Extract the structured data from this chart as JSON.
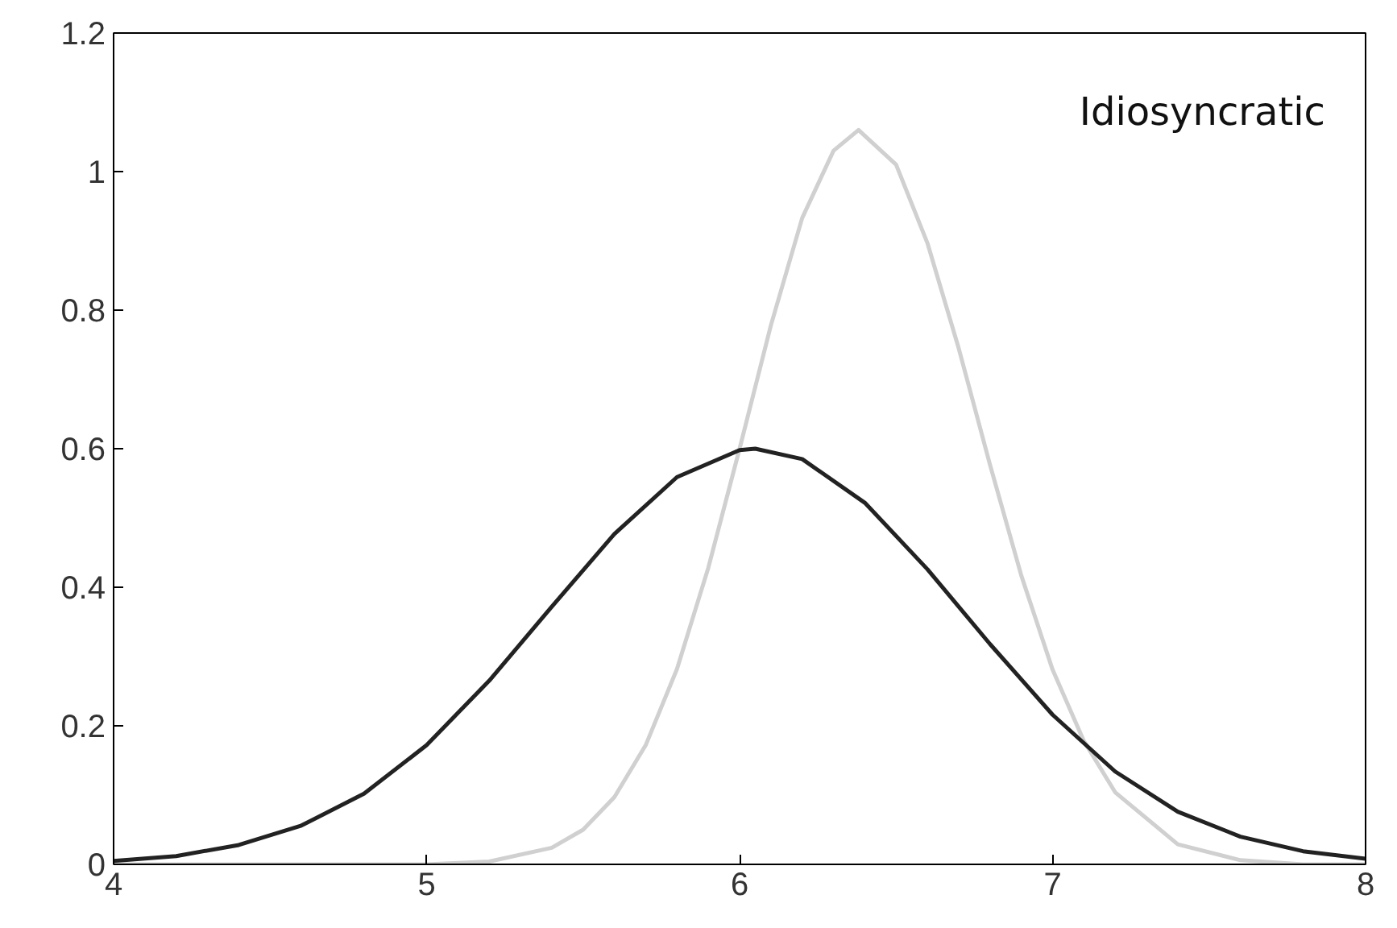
{
  "chart_data": {
    "type": "line",
    "xlim": [
      4,
      8
    ],
    "ylim": [
      0,
      1.2
    ],
    "xticks": [
      4,
      5,
      6,
      7,
      8
    ],
    "yticks": [
      0,
      0.2,
      0.4,
      0.6,
      0.8,
      1,
      1.2
    ],
    "grid": false,
    "marker": "none",
    "line_style": "solid",
    "annotations": [
      "Idiosyncratic"
    ],
    "series": [
      {
        "color": "#d0d0d0",
        "x": [
          4,
          5.0,
          5.2,
          5.4,
          5.5,
          5.6,
          5.7,
          5.8,
          5.9,
          6.0,
          6.1,
          6.2,
          6.3,
          6.38,
          6.5,
          6.6,
          6.7,
          6.8,
          6.9,
          7.0,
          7.1,
          7.2,
          7.4,
          7.6,
          7.8,
          8
        ],
        "values": [
          0,
          0,
          0.004,
          0.024,
          0.05,
          0.097,
          0.172,
          0.282,
          0.428,
          0.6,
          0.778,
          0.933,
          1.03,
          1.06,
          1.01,
          0.897,
          0.745,
          0.577,
          0.417,
          0.281,
          0.178,
          0.104,
          0.029,
          0.006,
          0,
          0
        ]
      },
      {
        "color": "#222222",
        "x": [
          4.0,
          4.2,
          4.4,
          4.6,
          4.8,
          5.0,
          5.2,
          5.4,
          5.6,
          5.8,
          6.0,
          6.05,
          6.2,
          6.4,
          6.6,
          6.8,
          7.0,
          7.2,
          7.4,
          7.6,
          7.8,
          8.0
        ],
        "values": [
          0.005,
          0.012,
          0.028,
          0.056,
          0.102,
          0.172,
          0.265,
          0.372,
          0.477,
          0.559,
          0.598,
          0.6,
          0.585,
          0.522,
          0.426,
          0.318,
          0.216,
          0.134,
          0.076,
          0.04,
          0.019,
          0.008
        ]
      }
    ]
  }
}
